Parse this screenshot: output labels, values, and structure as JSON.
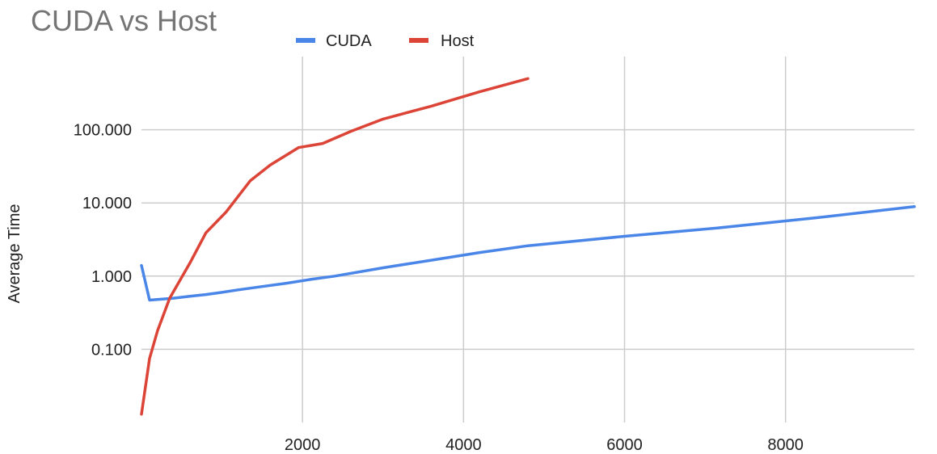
{
  "chart_data": {
    "type": "line",
    "title": "CUDA vs Host",
    "xlabel": "",
    "ylabel": "Average Time",
    "yscale": "log",
    "xlim": [
      0,
      9600
    ],
    "ylim": [
      0.01,
      1000
    ],
    "x_ticks": [
      2000,
      4000,
      6000,
      8000
    ],
    "x_tick_labels": [
      "2000",
      "4000",
      "6000",
      "8000"
    ],
    "y_ticks": [
      0.1,
      1,
      10,
      100
    ],
    "y_tick_labels": [
      "0.100",
      "1.000",
      "10.000",
      "100.000"
    ],
    "grid": true,
    "legend": "top-center",
    "series": [
      {
        "name": "CUDA",
        "color": "#4a86e8",
        "points": [
          [
            0,
            1.4
          ],
          [
            100,
            0.47
          ],
          [
            400,
            0.5
          ],
          [
            600,
            0.53
          ],
          [
            800,
            0.56
          ],
          [
            1000,
            0.6
          ],
          [
            1200,
            0.65
          ],
          [
            1500,
            0.72
          ],
          [
            1800,
            0.8
          ],
          [
            2100,
            0.9
          ],
          [
            2400,
            1.0
          ],
          [
            3000,
            1.3
          ],
          [
            3600,
            1.65
          ],
          [
            4200,
            2.1
          ],
          [
            4800,
            2.6
          ],
          [
            6000,
            3.5
          ],
          [
            7200,
            4.6
          ],
          [
            8400,
            6.3
          ],
          [
            9600,
            8.9
          ]
        ]
      },
      {
        "name": "Host",
        "color": "#db4437",
        "points": [
          [
            0,
            0.013
          ],
          [
            100,
            0.075
          ],
          [
            200,
            0.18
          ],
          [
            350,
            0.5
          ],
          [
            600,
            1.5
          ],
          [
            800,
            3.9
          ],
          [
            1050,
            7.5
          ],
          [
            1350,
            20
          ],
          [
            1600,
            33
          ],
          [
            1950,
            57
          ],
          [
            2250,
            65
          ],
          [
            2600,
            95
          ],
          [
            3000,
            140
          ],
          [
            3600,
            210
          ],
          [
            4200,
            330
          ],
          [
            4800,
            500
          ]
        ]
      }
    ]
  }
}
